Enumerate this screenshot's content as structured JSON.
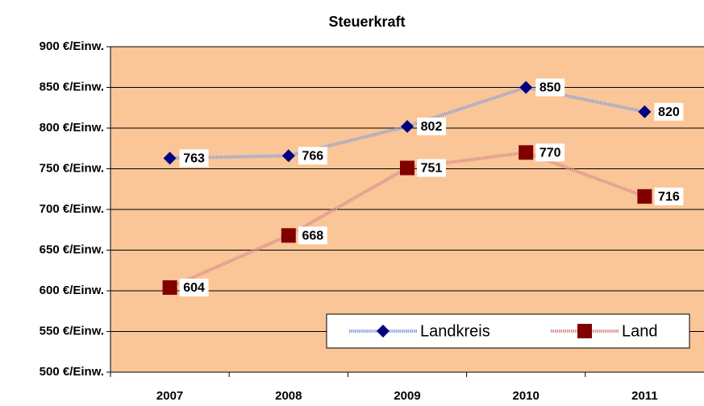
{
  "chart_data": {
    "type": "line",
    "title": "Steuerkraft",
    "categories": [
      "2007",
      "2008",
      "2009",
      "2010",
      "2011"
    ],
    "series": [
      {
        "name": "Landkreis",
        "color": "#000080",
        "values": [
          763,
          766,
          802,
          850,
          820
        ]
      },
      {
        "name": "Land",
        "color": "#800000",
        "values": [
          604,
          668,
          751,
          770,
          716
        ]
      }
    ],
    "ylim": [
      500,
      900
    ],
    "yticks": [
      {
        "value": 500,
        "label": "500 €/Einw."
      },
      {
        "value": 550,
        "label": "550 €/Einw."
      },
      {
        "value": 600,
        "label": "600 €/Einw."
      },
      {
        "value": 650,
        "label": "650 €/Einw."
      },
      {
        "value": 700,
        "label": "700 €/Einw."
      },
      {
        "value": 750,
        "label": "750 €/Einw."
      },
      {
        "value": 800,
        "label": "800 €/Einw."
      },
      {
        "value": 850,
        "label": "850 €/Einw."
      },
      {
        "value": 900,
        "label": "900 €/Einw."
      }
    ],
    "grid": true,
    "legend": "lower right"
  }
}
